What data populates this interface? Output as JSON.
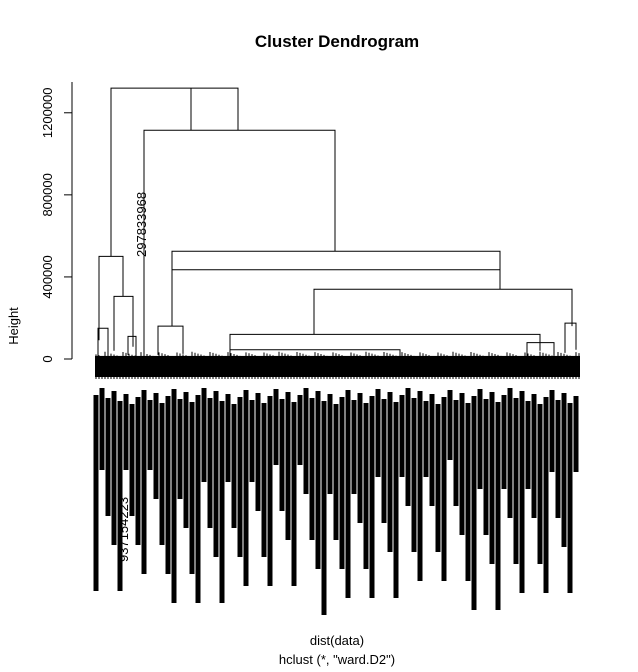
{
  "chart_data": {
    "type": "dendrogram",
    "title": "Cluster Dendrogram",
    "ylabel": "Height",
    "xlabel": "dist(data)",
    "sublabel": "hclust (*, \"ward.D2\")",
    "ylim": [
      0,
      1350000
    ],
    "yticks": [
      0,
      400000,
      800000,
      1200000
    ],
    "ytick_labels": [
      "0",
      "400000",
      "800000",
      "1200000"
    ],
    "merges": [
      {
        "id": "root",
        "height": 1320000
      },
      {
        "id": "left-group",
        "height": 500000
      },
      {
        "id": "left-sub",
        "height": 305000
      },
      {
        "id": "right-group",
        "height": 1115000
      },
      {
        "id": "mid-group",
        "height": 525000
      },
      {
        "id": "mid-inner",
        "height": 435000
      },
      {
        "id": "right-cluster",
        "height": 340000
      },
      {
        "id": "mid-low",
        "height": 120000
      },
      {
        "id": "left-mid-low",
        "height": 160000
      }
    ],
    "visible_leaf_labels": [
      "297833968",
      "937154223"
    ]
  }
}
